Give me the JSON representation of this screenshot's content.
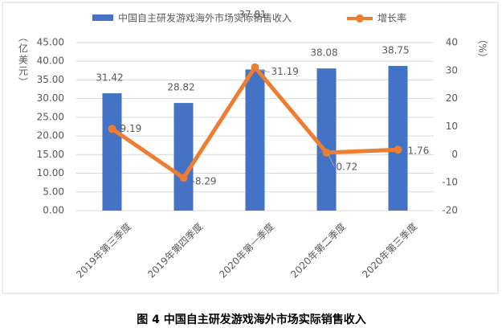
{
  "chart_data": {
    "type": "bar-line",
    "caption": "图 4  中国自主研发游戏海外市场实际销售收入",
    "y_label": "（亿美元）",
    "y2_label": "（%）",
    "categories": [
      "2019年第三季度",
      "2019年第四季度",
      "2020年第一季度",
      "2020年第二季度",
      "2020年第三季度"
    ],
    "series": [
      {
        "name": "中国自主研发游戏海外市场实际销售收入",
        "type": "bar",
        "color": "#4472c4",
        "values": [
          31.42,
          28.82,
          37.81,
          38.08,
          38.75
        ]
      },
      {
        "name": "增长率",
        "type": "line",
        "axis": "y2",
        "color": "#ed7d31",
        "values": [
          9.19,
          -8.29,
          31.19,
          0.72,
          1.76
        ]
      }
    ],
    "ylim": [
      0,
      45
    ],
    "yticks": [
      {
        "value": 0,
        "label": "0.00"
      },
      {
        "value": 5,
        "label": "5.00"
      },
      {
        "value": 10,
        "label": "10.00"
      },
      {
        "value": 15,
        "label": "15.00"
      },
      {
        "value": 20,
        "label": "20.00"
      },
      {
        "value": 25,
        "label": "25.00"
      },
      {
        "value": 30,
        "label": "30.00"
      },
      {
        "value": 35,
        "label": "35.00"
      },
      {
        "value": 40,
        "label": "40.00"
      },
      {
        "value": 45,
        "label": "45.00"
      }
    ],
    "y2lim": [
      -20,
      40
    ],
    "y2ticks": [
      -20,
      -10,
      0,
      10,
      20,
      30,
      40
    ],
    "grid": true,
    "legend": "top"
  }
}
